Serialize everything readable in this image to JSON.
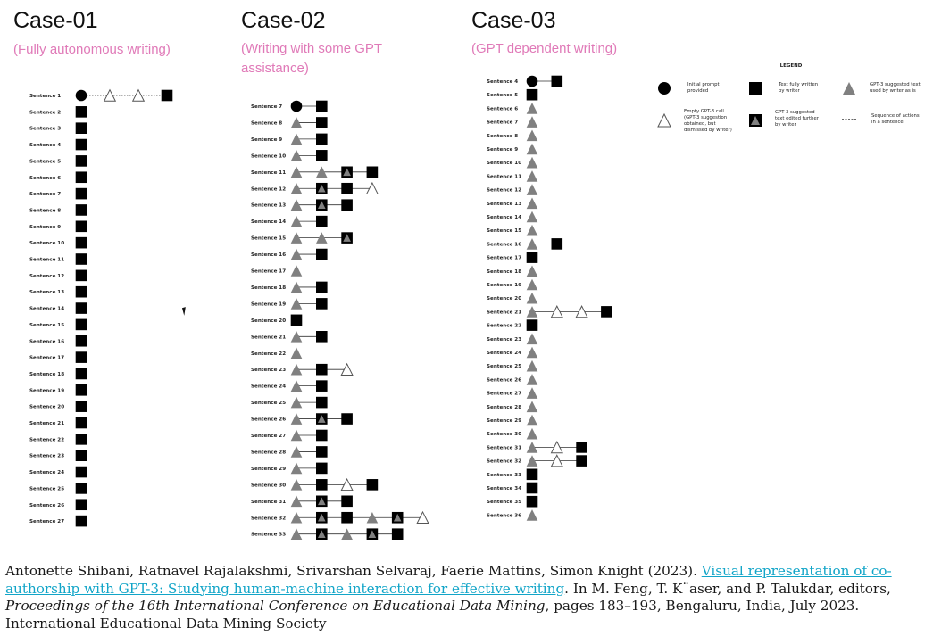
{
  "cases": [
    {
      "title": "Case-01",
      "subtitle_lines": [
        "(Fully autonomous writing)"
      ],
      "rows": [
        {
          "label": "Sentence 1",
          "seq": [
            "C",
            "T",
            "T",
            "S"
          ]
        },
        {
          "label": "Sentence 2",
          "seq": [
            "S"
          ]
        },
        {
          "label": "Sentence 3",
          "seq": [
            "S"
          ]
        },
        {
          "label": "Sentence 4",
          "seq": [
            "S"
          ]
        },
        {
          "label": "Sentence 5",
          "seq": [
            "S"
          ]
        },
        {
          "label": "Sentence 6",
          "seq": [
            "S"
          ]
        },
        {
          "label": "Sentence 7",
          "seq": [
            "S"
          ]
        },
        {
          "label": "Sentence 8",
          "seq": [
            "S"
          ]
        },
        {
          "label": "Sentence 9",
          "seq": [
            "S"
          ]
        },
        {
          "label": "Sentence 10",
          "seq": [
            "S"
          ]
        },
        {
          "label": "Sentence 11",
          "seq": [
            "S"
          ]
        },
        {
          "label": "Sentence 12",
          "seq": [
            "S"
          ]
        },
        {
          "label": "Sentence 13",
          "seq": [
            "S"
          ]
        },
        {
          "label": "Sentence 14",
          "seq": [
            "S"
          ]
        },
        {
          "label": "Sentence 15",
          "seq": [
            "S"
          ]
        },
        {
          "label": "Sentence 16",
          "seq": [
            "S"
          ]
        },
        {
          "label": "Sentence 17",
          "seq": [
            "S"
          ]
        },
        {
          "label": "Sentence 18",
          "seq": [
            "S"
          ]
        },
        {
          "label": "Sentence 19",
          "seq": [
            "S"
          ]
        },
        {
          "label": "Sentence 20",
          "seq": [
            "S"
          ]
        },
        {
          "label": "Sentence 21",
          "seq": [
            "S"
          ]
        },
        {
          "label": "Sentence 22",
          "seq": [
            "S"
          ]
        },
        {
          "label": "Sentence 23",
          "seq": [
            "S"
          ]
        },
        {
          "label": "Sentence 24",
          "seq": [
            "S"
          ]
        },
        {
          "label": "Sentence 25",
          "seq": [
            "S"
          ]
        },
        {
          "label": "Sentence 26",
          "seq": [
            "S"
          ]
        },
        {
          "label": "Sentence 27",
          "seq": [
            "S"
          ]
        }
      ]
    },
    {
      "title": "Case-02",
      "subtitle_lines": [
        "(Writing with  some GPT",
        "assistance)"
      ],
      "rows": [
        {
          "label": "Sentence 7",
          "seq": [
            "C",
            "S"
          ]
        },
        {
          "label": "Sentence 8",
          "seq": [
            "G",
            "S"
          ]
        },
        {
          "label": "Sentence 9",
          "seq": [
            "G",
            "S"
          ]
        },
        {
          "label": "Sentence 10",
          "seq": [
            "G",
            "S"
          ]
        },
        {
          "label": "Sentence 11",
          "seq": [
            "G",
            "G",
            "E",
            "S"
          ]
        },
        {
          "label": "Sentence 12",
          "seq": [
            "G",
            "E",
            "S",
            "T"
          ]
        },
        {
          "label": "Sentence 13",
          "seq": [
            "G",
            "E",
            "S"
          ]
        },
        {
          "label": "Sentence 14",
          "seq": [
            "G",
            "S"
          ]
        },
        {
          "label": "Sentence 15",
          "seq": [
            "G",
            "G",
            "E"
          ]
        },
        {
          "label": "Sentence 16",
          "seq": [
            "G",
            "S"
          ]
        },
        {
          "label": "Sentence 17",
          "seq": [
            "G"
          ]
        },
        {
          "label": "Sentence 18",
          "seq": [
            "G",
            "S"
          ]
        },
        {
          "label": "Sentence 19",
          "seq": [
            "G",
            "S"
          ]
        },
        {
          "label": "Sentence 20",
          "seq": [
            "S"
          ]
        },
        {
          "label": "Sentence 21",
          "seq": [
            "G",
            "S"
          ]
        },
        {
          "label": "Sentence 22",
          "seq": [
            "G"
          ]
        },
        {
          "label": "Sentence 23",
          "seq": [
            "G",
            "S",
            "T"
          ]
        },
        {
          "label": "Sentence 24",
          "seq": [
            "G",
            "S"
          ]
        },
        {
          "label": "Sentence 25",
          "seq": [
            "G",
            "S"
          ]
        },
        {
          "label": "Sentence 26",
          "seq": [
            "G",
            "E",
            "S"
          ]
        },
        {
          "label": "Sentence 27",
          "seq": [
            "G",
            "S"
          ]
        },
        {
          "label": "Sentence 28",
          "seq": [
            "G",
            "S"
          ]
        },
        {
          "label": "Sentence 29",
          "seq": [
            "G",
            "S"
          ]
        },
        {
          "label": "Sentence 30",
          "seq": [
            "G",
            "S",
            "T",
            "S"
          ]
        },
        {
          "label": "Sentence 31",
          "seq": [
            "G",
            "E",
            "S"
          ]
        },
        {
          "label": "Sentence 32",
          "seq": [
            "G",
            "E",
            "S",
            "G",
            "E",
            "T"
          ]
        },
        {
          "label": "Sentence 33",
          "seq": [
            "G",
            "E",
            "G",
            "E",
            "S"
          ]
        }
      ]
    },
    {
      "title": "Case-03",
      "subtitle_lines": [
        "(GPT dependent writing)"
      ],
      "rows": [
        {
          "label": "Sentence 4",
          "seq": [
            "C",
            "S"
          ]
        },
        {
          "label": "Sentence 5",
          "seq": [
            "S"
          ]
        },
        {
          "label": "Sentence 6",
          "seq": [
            "G"
          ]
        },
        {
          "label": "Sentence 7",
          "seq": [
            "G"
          ]
        },
        {
          "label": "Sentence 8",
          "seq": [
            "G"
          ]
        },
        {
          "label": "Sentence 9",
          "seq": [
            "G"
          ]
        },
        {
          "label": "Sentence 10",
          "seq": [
            "G"
          ]
        },
        {
          "label": "Sentence 11",
          "seq": [
            "G"
          ]
        },
        {
          "label": "Sentence 12",
          "seq": [
            "G"
          ]
        },
        {
          "label": "Sentence 13",
          "seq": [
            "G"
          ]
        },
        {
          "label": "Sentence 14",
          "seq": [
            "G"
          ]
        },
        {
          "label": "Sentence 15",
          "seq": [
            "G"
          ]
        },
        {
          "label": "Sentence 16",
          "seq": [
            "G",
            "S"
          ]
        },
        {
          "label": "Sentence 17",
          "seq": [
            "S"
          ]
        },
        {
          "label": "Sentence 18",
          "seq": [
            "G"
          ]
        },
        {
          "label": "Sentence 19",
          "seq": [
            "G"
          ]
        },
        {
          "label": "Sentence 20",
          "seq": [
            "G"
          ]
        },
        {
          "label": "Sentence 21",
          "seq": [
            "G",
            "T",
            "T",
            "S"
          ]
        },
        {
          "label": "Sentence 22",
          "seq": [
            "S"
          ]
        },
        {
          "label": "Sentence 23",
          "seq": [
            "G"
          ]
        },
        {
          "label": "Sentence 24",
          "seq": [
            "G"
          ]
        },
        {
          "label": "Sentence 25",
          "seq": [
            "G"
          ]
        },
        {
          "label": "Sentence 26",
          "seq": [
            "G"
          ]
        },
        {
          "label": "Sentence 27",
          "seq": [
            "G"
          ]
        },
        {
          "label": "Sentence 28",
          "seq": [
            "G"
          ]
        },
        {
          "label": "Sentence 29",
          "seq": [
            "G"
          ]
        },
        {
          "label": "Sentence 30",
          "seq": [
            "G"
          ]
        },
        {
          "label": "Sentence 31",
          "seq": [
            "G",
            "T",
            "S"
          ]
        },
        {
          "label": "Sentence 32",
          "seq": [
            "G",
            "T",
            "S"
          ]
        },
        {
          "label": "Sentence 33",
          "seq": [
            "S"
          ]
        },
        {
          "label": "Sentence 34",
          "seq": [
            "S"
          ]
        },
        {
          "label": "Sentence 35",
          "seq": [
            "S"
          ]
        },
        {
          "label": "Sentence 36",
          "seq": [
            "G"
          ]
        }
      ]
    }
  ],
  "legend": {
    "title": "LEGEND",
    "items": [
      {
        "symbol": "C",
        "lines": [
          "Initial prompt",
          "provided"
        ]
      },
      {
        "symbol": "S",
        "lines": [
          "Text fully written",
          "by writer"
        ]
      },
      {
        "symbol": "G",
        "lines": [
          "GPT-3 suggested text",
          "used by writer as is"
        ]
      },
      {
        "symbol": "T",
        "lines": [
          "Empty GPT-3 call",
          "(GPT-3 suggestion",
          "obtained, but",
          "dismissed by writer)"
        ]
      },
      {
        "symbol": "E",
        "lines": [
          "GPT-3 suggested",
          "text edited further",
          "by writer"
        ]
      },
      {
        "symbol": "L",
        "lines": [
          "Sequence of actions",
          "in a sentence"
        ]
      }
    ]
  },
  "colors": {
    "marker": "#000000",
    "gpt_triangle": "#808080",
    "subtitle": "#e07ab8",
    "link": "#12a5c8"
  },
  "citation": {
    "authors": "Antonette Shibani, Ratnavel Rajalakshmi, Srivarshan Selvaraj, Faerie Mattins, Simon Knight (2023). ",
    "link_text": "Visual representation of co-authorship with GPT-3: Studying human-machine interaction for effective writing",
    "after_link": ". In M. Feng, T. K¨aser, and P. Talukdar, editors, ",
    "venue": "Proceedings of the 16th International Conference on Educational Data Mining",
    "tail": ", pages 183–193, Bengaluru, India, July 2023. International Educational Data Mining Society"
  }
}
